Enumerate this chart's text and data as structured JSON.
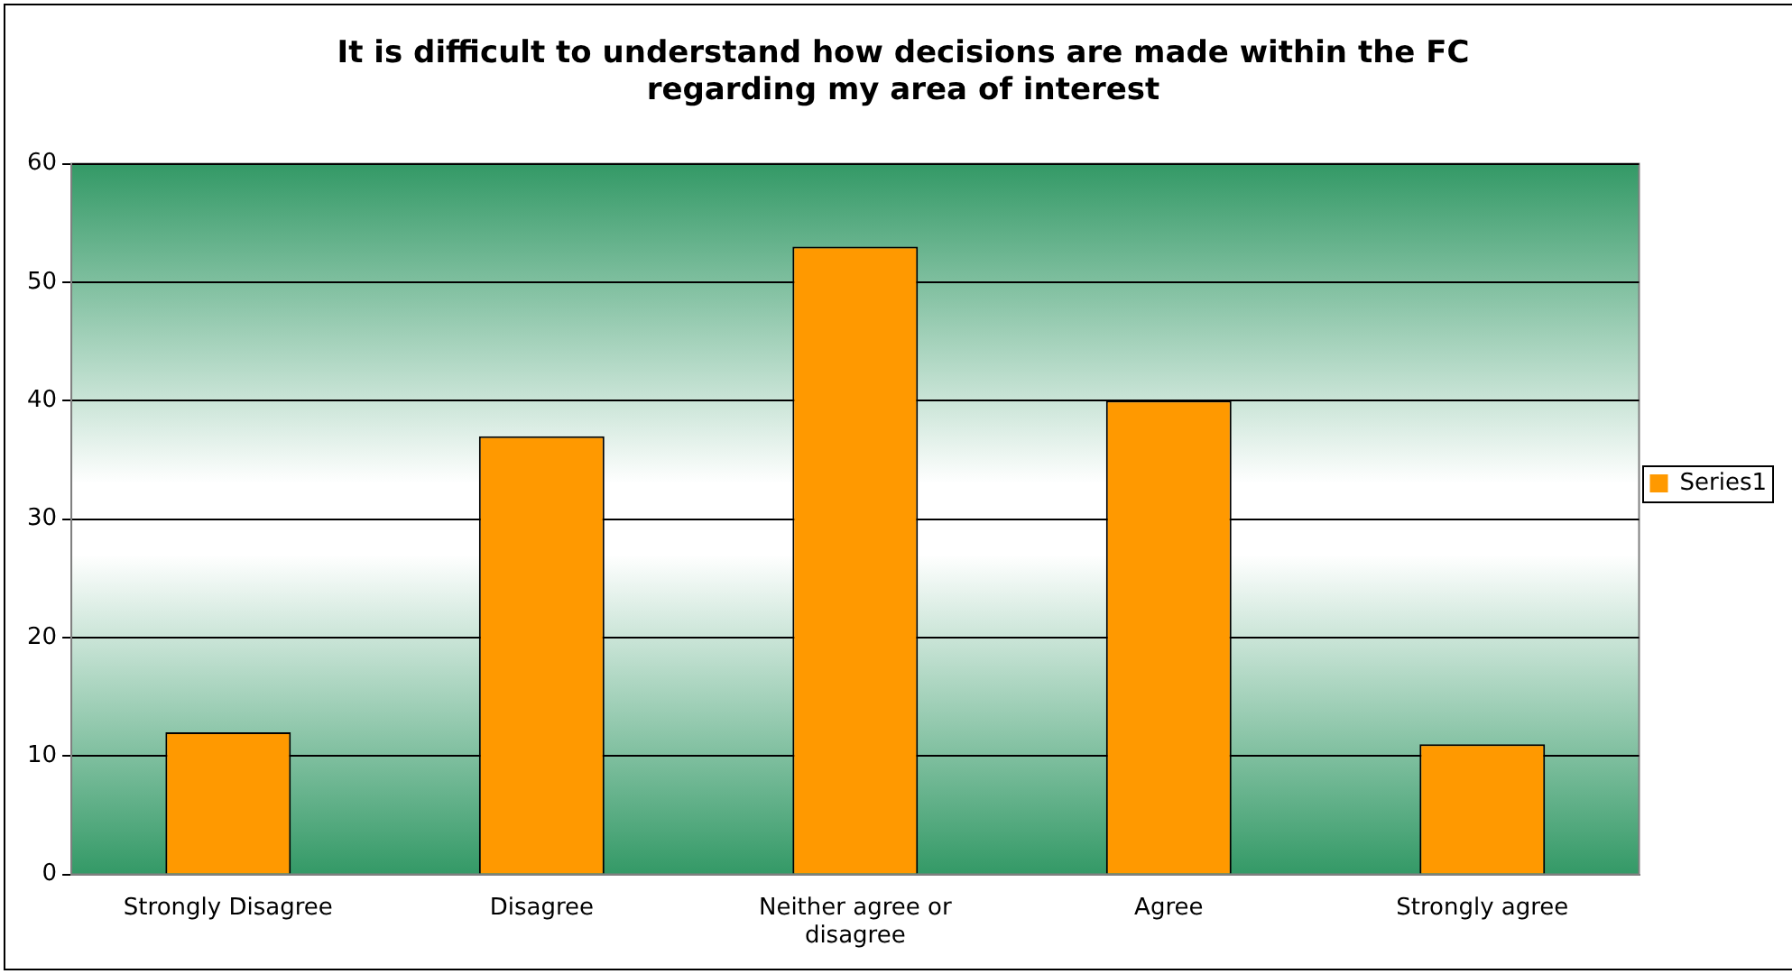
{
  "chart_data": {
    "type": "bar",
    "title": "It is difficult to understand how decisions are made within the FC regarding my area of interest",
    "categories": [
      "Strongly Disagree",
      "Disagree",
      "Neither agree or disagree",
      "Agree",
      "Strongly agree"
    ],
    "series": [
      {
        "name": "Series1",
        "color": "#ff9900",
        "values": [
          12,
          37,
          53,
          40,
          11
        ]
      }
    ],
    "ylim": [
      0,
      60
    ],
    "yticks": [
      0,
      10,
      20,
      30,
      40,
      50,
      60
    ],
    "grid": "y",
    "legend": "right"
  }
}
